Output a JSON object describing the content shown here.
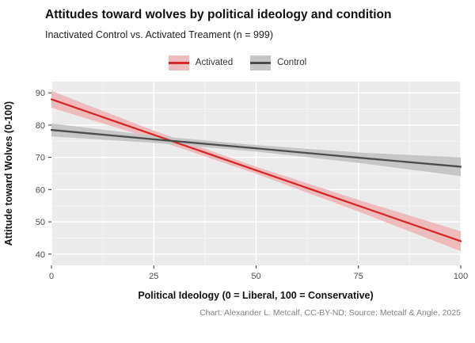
{
  "colors": {
    "panel": "#ebebeb",
    "grid_major": "#ffffff",
    "grid_minor": "#f5f5f5",
    "tick_text": "#4d4d4d",
    "tick_mark": "#333333"
  },
  "chart_data": {
    "type": "line",
    "title": "Attitudes toward wolves by political ideology and condition",
    "subtitle": "Inactivated Control vs. Activated Treament (n = 999)",
    "xlabel": "Political Ideology (0 = Liberal, 100 = Conservative)",
    "ylabel": "Attitude toward Wolves (0-100)",
    "caption": "Chart: Alexander L. Metcalf, CC-BY-ND; Source: Metcalf & Angle, 2025",
    "xlim": [
      0,
      100
    ],
    "ylim": [
      40,
      90
    ],
    "x_ticks": [
      0,
      25,
      50,
      75,
      100
    ],
    "y_ticks": [
      40,
      50,
      60,
      70,
      80,
      90
    ],
    "grid": true,
    "legend_position": "top",
    "series": [
      {
        "name": "Activated",
        "color": "#d62728",
        "band_color": "#eebcbc",
        "x": [
          0,
          25,
          50,
          75,
          100
        ],
        "y": [
          88,
          77,
          66,
          55,
          44
        ],
        "ci": [
          2.6,
          1.3,
          1.1,
          1.8,
          3.1
        ]
      },
      {
        "name": "Control",
        "color": "#4d4d4d",
        "band_color": "#c6c6c6",
        "x": [
          0,
          25,
          50,
          75,
          100
        ],
        "y": [
          78.5,
          75.6,
          72.8,
          69.9,
          67.1
        ],
        "ci": [
          2.0,
          1.1,
          1.0,
          1.6,
          2.9
        ]
      }
    ]
  }
}
